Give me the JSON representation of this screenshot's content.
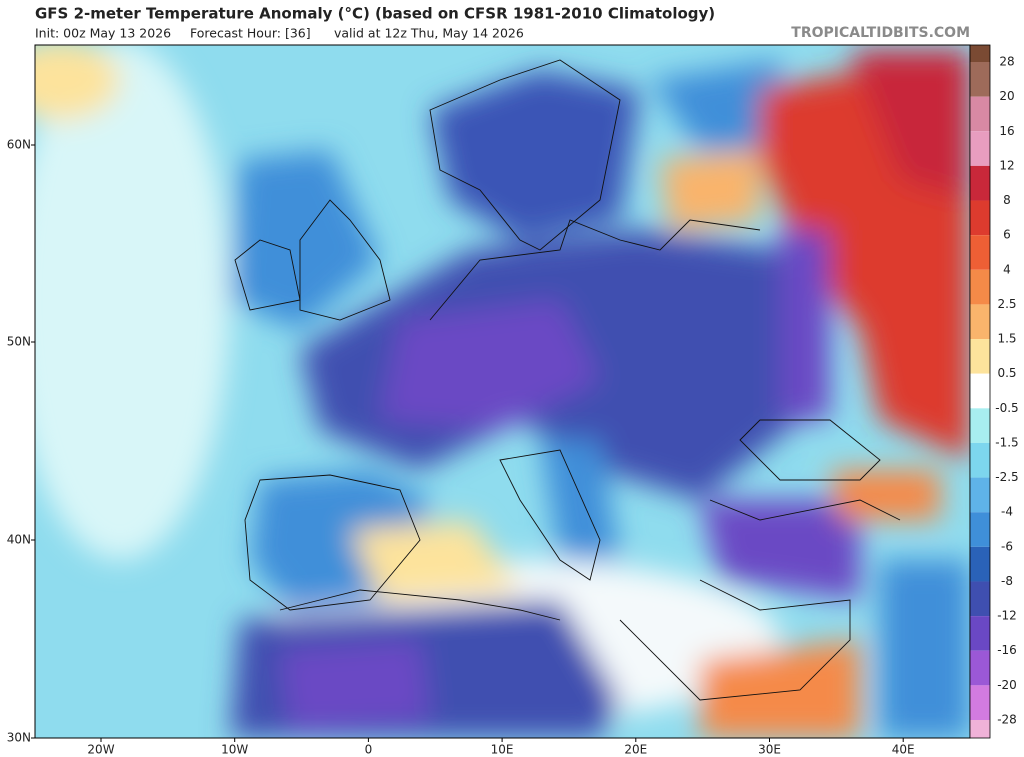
{
  "header": {
    "title": "GFS 2-meter Temperature Anomaly (°C) (based on CFSR 1981-2010 Climatology)",
    "init": "Init: 00z May 13 2026",
    "forecast_hour": "Forecast Hour: [36]",
    "valid": "valid at 12z Thu, May 14 2026",
    "credit": "TROPICALTIDBITS.COM"
  },
  "map": {
    "lat_labels": [
      "60N",
      "50N",
      "40N",
      "30N"
    ],
    "lon_labels": [
      "20W",
      "10W",
      "0",
      "10E",
      "20E",
      "30E",
      "40E"
    ]
  },
  "colorbar": {
    "labels": [
      "28",
      "20",
      "16",
      "12",
      "8",
      "6",
      "4",
      "2.5",
      "1.5",
      "0.5",
      "-0.5",
      "-1.5",
      "-2.5",
      "-4",
      "-6",
      "-8",
      "-12",
      "-16",
      "-20",
      "-28"
    ],
    "colors": [
      "#7a4a33",
      "#9e6b5a",
      "#d889a4",
      "#e89dbf",
      "#c8283a",
      "#dd3b2e",
      "#ee5f35",
      "#f58a48",
      "#f9b46c",
      "#fde39c",
      "#ffffff",
      "#a8eef0",
      "#7dd6ee",
      "#5fb3e8",
      "#3f8fd9",
      "#2a62b8",
      "#3f4fb0",
      "#6a48c4",
      "#9b58d6",
      "#d27be0",
      "#f0b2d8"
    ]
  }
}
